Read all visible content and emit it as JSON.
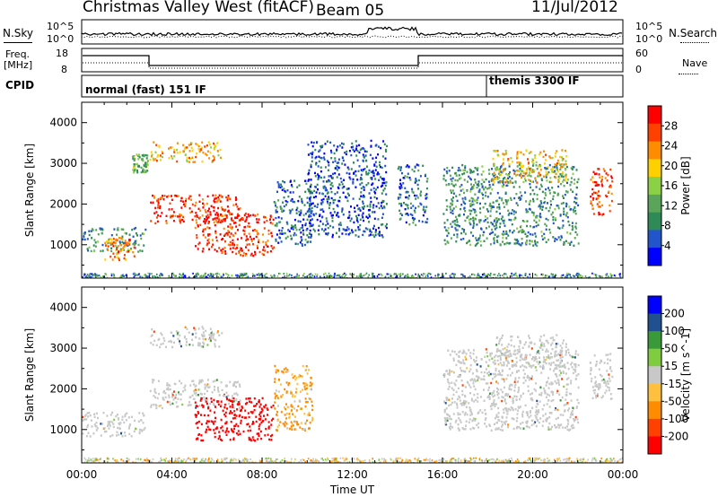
{
  "header": {
    "station": "Christmas Valley West (fitACF)",
    "beam": "Beam 05",
    "date": "11/Jul/2012"
  },
  "strip": {
    "nsky_label": "N.Sky",
    "nsearch_label": "N.Search",
    "n_tick_top": "10^5",
    "n_tick_bottom": "10^0",
    "freq_label_1": "Freq.",
    "freq_label_2": "[MHz]",
    "freq_ticks": [
      "18",
      "8"
    ],
    "nave_label": "Nave",
    "nave_ticks": [
      "60",
      "0"
    ],
    "cpid_label": "CPID",
    "cpid_segments": [
      "normal (fast) 151 IF",
      "themis 3300 IF"
    ]
  },
  "colors": {
    "power_scale": [
      "#0000ff",
      "#2255cc",
      "#2e8b57",
      "#5aa55a",
      "#8cd046",
      "#ffd000",
      "#ff8c00",
      "#ff4000",
      "#ff0000"
    ],
    "velocity_scale": [
      "#0000ff",
      "#205090",
      "#3a9a3a",
      "#80cc40",
      "#c8c8c8",
      "#ffc040",
      "#ff8c00",
      "#ff4000",
      "#ff0000"
    ],
    "ground_scatter": "#c0c0c0"
  },
  "chart_data": [
    {
      "type": "heatmap",
      "panel": "power",
      "xlabel": "Time UT",
      "ylabel": "Slant Range [km]",
      "x_ticks": [
        "00:00",
        "04:00",
        "08:00",
        "12:00",
        "16:00",
        "20:00",
        "00:00"
      ],
      "xlim_hours": [
        0,
        24
      ],
      "ylim_km": [
        180,
        4500
      ],
      "y_ticks": [
        1000,
        2000,
        3000,
        4000
      ],
      "colorbar_label": "Power [dB]",
      "colorbar_ticks": [
        "28",
        "24",
        "20",
        "16",
        "12",
        "8",
        "4"
      ],
      "features": [
        {
          "t0": 0.0,
          "t1": 2.8,
          "r0": 850,
          "r1": 1450,
          "p": 9
        },
        {
          "t0": 1.0,
          "t1": 2.3,
          "r0": 650,
          "r1": 1200,
          "p": 22
        },
        {
          "t0": 2.2,
          "t1": 2.9,
          "r0": 2800,
          "r1": 3250,
          "p": 12
        },
        {
          "t0": 3.0,
          "t1": 6.2,
          "r0": 3050,
          "r1": 3550,
          "p": 20
        },
        {
          "t0": 3.0,
          "t1": 7.0,
          "r0": 1550,
          "r1": 2250,
          "p": 26
        },
        {
          "t0": 5.0,
          "t1": 8.5,
          "r0": 750,
          "r1": 1800,
          "p": 26
        },
        {
          "t0": 8.5,
          "t1": 10.2,
          "r0": 1000,
          "r1": 2600,
          "p": 6
        },
        {
          "t0": 10.0,
          "t1": 13.5,
          "r0": 1200,
          "r1": 3600,
          "p": 5
        },
        {
          "t0": 14.0,
          "t1": 15.3,
          "r0": 1500,
          "r1": 3000,
          "p": 7
        },
        {
          "t0": 16.0,
          "t1": 22.0,
          "r0": 1000,
          "r1": 3000,
          "p": 9
        },
        {
          "t0": 18.2,
          "t1": 21.5,
          "r0": 2550,
          "r1": 3350,
          "p": 19
        },
        {
          "t0": 22.5,
          "t1": 23.5,
          "r0": 1750,
          "r1": 2900,
          "p": 26
        }
      ]
    },
    {
      "type": "heatmap",
      "panel": "velocity",
      "xlabel": "Time UT",
      "ylabel": "Slant Range [km]",
      "x_ticks": [
        "00:00",
        "04:00",
        "08:00",
        "12:00",
        "16:00",
        "20:00",
        "00:00"
      ],
      "xlim_hours": [
        0,
        24
      ],
      "ylim_km": [
        180,
        4500
      ],
      "y_ticks": [
        1000,
        2000,
        3000,
        4000
      ],
      "colorbar_label": "Velocity [m s^-1]",
      "colorbar_ticks": [
        "200",
        "100",
        "50",
        "15",
        "-15",
        "-50",
        "-100",
        "-200"
      ],
      "features": [
        {
          "t0": 0.0,
          "t1": 2.8,
          "r0": 850,
          "r1": 1450,
          "v": 0
        },
        {
          "t0": 3.0,
          "t1": 6.2,
          "r0": 3050,
          "r1": 3550,
          "v": 0
        },
        {
          "t0": 3.0,
          "t1": 7.0,
          "r0": 1550,
          "r1": 2250,
          "v": 0
        },
        {
          "t0": 5.0,
          "t1": 8.5,
          "r0": 750,
          "r1": 1800,
          "v": -200
        },
        {
          "t0": 8.5,
          "t1": 10.2,
          "r0": 1000,
          "r1": 2600,
          "v": -40
        },
        {
          "t0": 16.0,
          "t1": 22.0,
          "r0": 1000,
          "r1": 3000,
          "v": 0
        },
        {
          "t0": 18.2,
          "t1": 21.5,
          "r0": 2550,
          "r1": 3350,
          "v": 0
        },
        {
          "t0": 22.5,
          "t1": 23.5,
          "r0": 1750,
          "r1": 2900,
          "v": 0
        }
      ]
    }
  ]
}
